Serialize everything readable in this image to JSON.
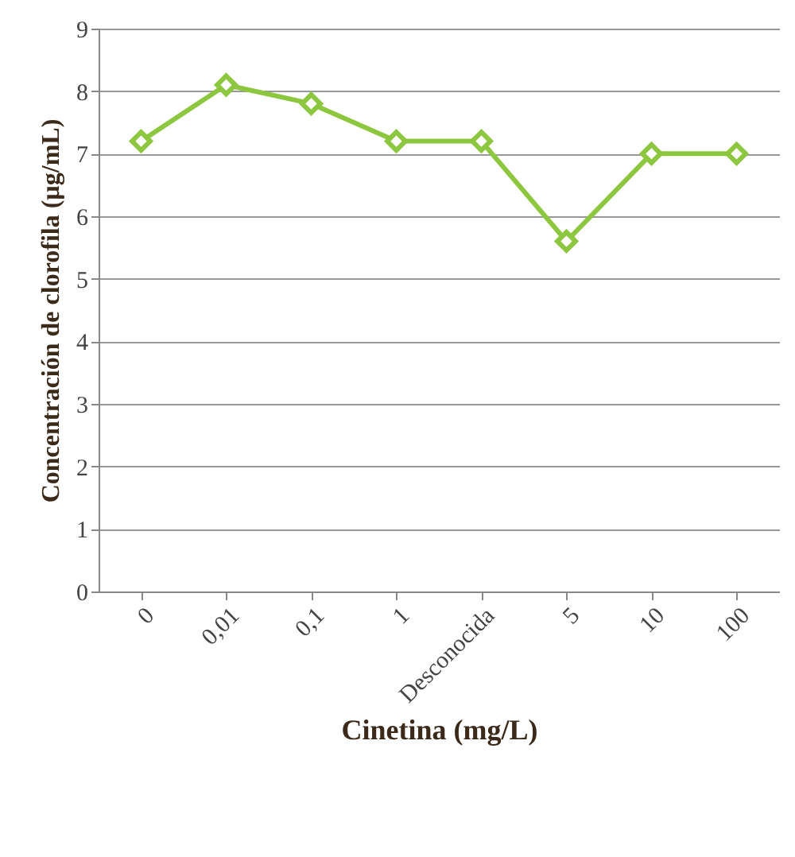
{
  "chart_data": {
    "type": "line",
    "xlabel": "Cinetina (mg/L)",
    "ylabel": "Concentración de clorofila (µg/mL)",
    "categories": [
      "0",
      "0,01",
      "0,1",
      "1",
      "Desconocida",
      "5",
      "10",
      "100"
    ],
    "series": [
      {
        "color": "#8dc63f",
        "values": [
          7.2,
          8.1,
          7.8,
          7.2,
          7.2,
          5.6,
          7.0,
          7.0
        ]
      }
    ],
    "ylim": [
      0,
      9
    ],
    "yticks": [
      0,
      1,
      2,
      3,
      4,
      5,
      6,
      7,
      8,
      9
    ],
    "grid": "y",
    "marker": "diamond"
  }
}
